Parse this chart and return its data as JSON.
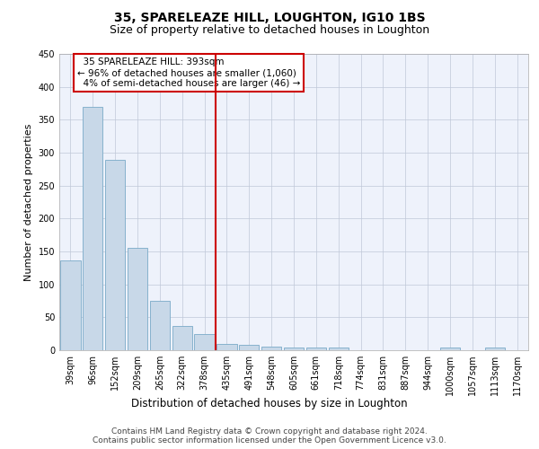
{
  "title1": "35, SPARELEAZE HILL, LOUGHTON, IG10 1BS",
  "title2": "Size of property relative to detached houses in Loughton",
  "xlabel": "Distribution of detached houses by size in Loughton",
  "ylabel": "Number of detached properties",
  "categories": [
    "39sqm",
    "96sqm",
    "152sqm",
    "209sqm",
    "265sqm",
    "322sqm",
    "378sqm",
    "435sqm",
    "491sqm",
    "548sqm",
    "605sqm",
    "661sqm",
    "718sqm",
    "774sqm",
    "831sqm",
    "887sqm",
    "944sqm",
    "1000sqm",
    "1057sqm",
    "1113sqm",
    "1170sqm"
  ],
  "values": [
    136,
    370,
    289,
    155,
    75,
    37,
    25,
    10,
    8,
    6,
    4,
    4,
    4,
    0,
    0,
    0,
    0,
    4,
    0,
    4,
    0
  ],
  "bar_color": "#c8d8e8",
  "bar_edge_color": "#7aaac8",
  "vline_x": 6.5,
  "vline_color": "#cc0000",
  "annotation_box_text": "  35 SPARELEAZE HILL: 393sqm  \n← 96% of detached houses are smaller (1,060)\n  4% of semi-detached houses are larger (46) →",
  "box_edge_color": "#cc0000",
  "ylim": [
    0,
    450
  ],
  "yticks": [
    0,
    50,
    100,
    150,
    200,
    250,
    300,
    350,
    400,
    450
  ],
  "bg_color": "#eef2fb",
  "footer": "Contains HM Land Registry data © Crown copyright and database right 2024.\nContains public sector information licensed under the Open Government Licence v3.0.",
  "title1_fontsize": 10,
  "title2_fontsize": 9,
  "xlabel_fontsize": 8.5,
  "ylabel_fontsize": 8,
  "tick_fontsize": 7,
  "annot_fontsize": 7.5,
  "footer_fontsize": 6.5
}
